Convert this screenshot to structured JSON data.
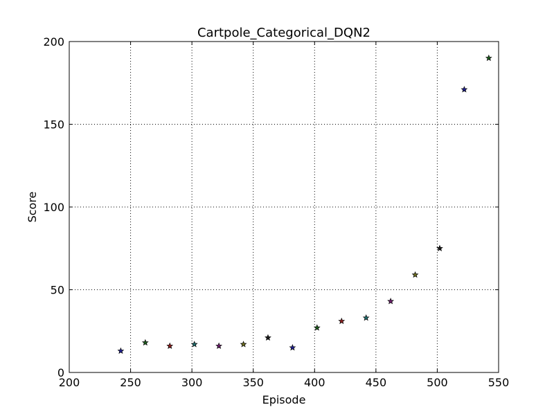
{
  "chart_data": {
    "type": "scatter",
    "title": "Cartpole_Categorical_DQN2",
    "xlabel": "Episode",
    "ylabel": "Score",
    "xlim": [
      200,
      550
    ],
    "ylim": [
      0,
      200
    ],
    "xticks": [
      200,
      250,
      300,
      350,
      400,
      450,
      500,
      550
    ],
    "yticks": [
      0,
      50,
      100,
      150,
      200
    ],
    "grid": true,
    "marker": "star",
    "points": [
      {
        "x": 242,
        "y": 13,
        "color": "#1f1f8f"
      },
      {
        "x": 262,
        "y": 18,
        "color": "#1f5f1f"
      },
      {
        "x": 282,
        "y": 16,
        "color": "#8f1f1f"
      },
      {
        "x": 302,
        "y": 17,
        "color": "#1f6f6f"
      },
      {
        "x": 322,
        "y": 16,
        "color": "#6f1f6f"
      },
      {
        "x": 342,
        "y": 17,
        "color": "#6f6f1f"
      },
      {
        "x": 362,
        "y": 21,
        "color": "#1a1a1a"
      },
      {
        "x": 382,
        "y": 15,
        "color": "#1f1f8f"
      },
      {
        "x": 402,
        "y": 27,
        "color": "#1f5f1f"
      },
      {
        "x": 422,
        "y": 31,
        "color": "#8f1f1f"
      },
      {
        "x": 442,
        "y": 33,
        "color": "#1f6f6f"
      },
      {
        "x": 462,
        "y": 43,
        "color": "#6f1f6f"
      },
      {
        "x": 482,
        "y": 59,
        "color": "#6f6f1f"
      },
      {
        "x": 502,
        "y": 75,
        "color": "#1a1a1a"
      },
      {
        "x": 522,
        "y": 171,
        "color": "#1f1f8f"
      },
      {
        "x": 542,
        "y": 190,
        "color": "#1f5f1f"
      }
    ]
  }
}
